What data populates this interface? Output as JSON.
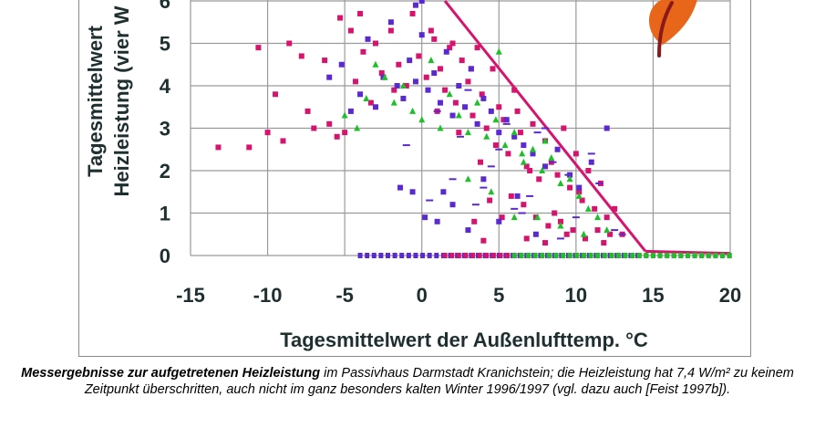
{
  "chart_data": {
    "type": "scatter",
    "xlabel": "Tagesmittelwert der Außenlufttemp. °C",
    "ylabel_line1": "Tagesmittelwert",
    "ylabel_line2": "Heizleistung (vier W",
    "xlim": [
      -15,
      20
    ],
    "ylim": [
      0,
      6
    ],
    "xticks": [
      "-15",
      "-10",
      "-5",
      "0",
      "5",
      "10",
      "15",
      "20"
    ],
    "yticks": [
      "0",
      "1",
      "2",
      "3",
      "4",
      "5",
      "6"
    ],
    "grid": true,
    "colors": {
      "magenta": "#d6146e",
      "purple": "#5a2ad0",
      "green": "#1fbf2a",
      "logo": "#e8661a"
    },
    "envelope_line": {
      "x": [
        1.5,
        14.5
      ],
      "y": [
        6.0,
        0.1
      ]
    },
    "series": [
      {
        "marker": "square",
        "color": "#d6146e",
        "x": [
          -13.2,
          -11.2,
          -10.6,
          -10.0,
          -9.5,
          -9.0,
          -8.6,
          -7.8,
          -7.4,
          -7.0,
          -6.3,
          -6.0,
          -5.5,
          -5.3,
          -5.0,
          -4.6,
          -4.3,
          -4.0,
          -3.8,
          -3.3,
          -3.0,
          -2.6,
          -2.0,
          -1.5,
          -1.0,
          -0.6,
          -0.2,
          0.3,
          0.8,
          1.2,
          1.5,
          2.0,
          2.2,
          2.6,
          3.0,
          3.3,
          3.6,
          3.9,
          4.2,
          4.6,
          5.0,
          5.3,
          5.6,
          6.0,
          6.4,
          6.8,
          7.2,
          7.6,
          8.0,
          8.4,
          8.8,
          9.2,
          9.6,
          10.0,
          10.4,
          10.8,
          11.2,
          11.6,
          12.0,
          12.5,
          13.0,
          1.0,
          2.4,
          3.8,
          4.4,
          5.8,
          6.6,
          7.4,
          8.2,
          9.4,
          10.6,
          11.8,
          -1.8,
          0.6,
          1.8,
          3.2,
          4.8,
          6.2,
          7.0,
          8.6,
          9.0,
          9.8,
          10.2,
          11.4,
          12.2,
          3.4,
          4.0,
          5.2,
          6.8,
          8.0
        ],
        "y": [
          2.55,
          2.55,
          4.9,
          2.9,
          3.8,
          2.7,
          5.0,
          4.7,
          3.4,
          3.0,
          4.6,
          3.1,
          2.8,
          5.6,
          2.9,
          5.3,
          4.1,
          5.7,
          4.8,
          3.6,
          5.0,
          4.3,
          5.3,
          4.5,
          4.0,
          5.7,
          4.7,
          4.2,
          5.1,
          4.4,
          3.9,
          5.0,
          3.6,
          4.6,
          4.1,
          3.3,
          4.9,
          3.8,
          3.0,
          4.4,
          3.5,
          3.2,
          2.4,
          3.9,
          2.9,
          2.1,
          3.1,
          1.8,
          2.7,
          2.2,
          1.9,
          3.0,
          1.6,
          2.4,
          1.3,
          2.0,
          1.1,
          1.7,
          0.9,
          1.1,
          0.5,
          3.4,
          2.9,
          2.2,
          1.3,
          1.4,
          1.2,
          0.9,
          0.7,
          0.5,
          0.4,
          0.3,
          3.9,
          5.3,
          4.9,
          4.4,
          2.6,
          3.4,
          2.0,
          1.0,
          0.8,
          0.6,
          1.5,
          0.6,
          0.5,
          0.8,
          0.35,
          0.9,
          0.4,
          0.3
        ]
      },
      {
        "marker": "square",
        "color": "#5a2ad0",
        "x": [
          -6.0,
          -5.2,
          -4.6,
          -4.0,
          -3.5,
          -3.0,
          -2.5,
          -2.0,
          -1.6,
          -1.2,
          -0.8,
          -0.4,
          0.0,
          0.4,
          0.8,
          1.2,
          1.6,
          2.0,
          2.4,
          2.8,
          3.2,
          3.6,
          4.0,
          4.5,
          5.0,
          5.5,
          6.0,
          6.6,
          7.2,
          8.0,
          8.8,
          9.6,
          10.2,
          11.0,
          12.0,
          -1.4,
          -0.6,
          0.2,
          1.0,
          2.0,
          3.0,
          4.0,
          5.0,
          6.2,
          7.4,
          0.0,
          -0.4,
          1.4
        ],
        "y": [
          4.2,
          4.5,
          3.4,
          3.8,
          5.1,
          3.5,
          4.2,
          5.5,
          4.0,
          3.7,
          4.6,
          4.1,
          5.2,
          3.9,
          4.3,
          3.6,
          4.8,
          3.3,
          4.0,
          3.5,
          4.4,
          3.1,
          3.7,
          3.4,
          2.9,
          3.2,
          2.8,
          2.6,
          2.4,
          2.1,
          2.5,
          1.9,
          1.6,
          2.2,
          3.0,
          1.6,
          1.5,
          0.9,
          0.8,
          1.2,
          0.6,
          1.8,
          0.8,
          1.4,
          0.5,
          6.0,
          5.9,
          1.5
        ]
      },
      {
        "marker": "triangle",
        "color": "#1fbf2a",
        "x": [
          -5.0,
          -4.2,
          -3.6,
          -3.0,
          -2.4,
          -1.8,
          -1.2,
          -0.6,
          0.0,
          0.6,
          1.2,
          1.8,
          2.4,
          3.0,
          3.6,
          4.2,
          4.8,
          5.4,
          6.0,
          6.6,
          7.2,
          7.8,
          8.4,
          9.0,
          9.6,
          10.2,
          10.8,
          11.4,
          12.0,
          3.0,
          4.5,
          6.0,
          7.5,
          9.0,
          10.5,
          5.0,
          6.5,
          8.0
        ],
        "y": [
          3.3,
          3.0,
          3.7,
          4.5,
          4.2,
          3.6,
          4.0,
          3.4,
          3.2,
          4.6,
          3.0,
          3.8,
          3.3,
          2.9,
          3.6,
          2.8,
          3.2,
          2.6,
          2.9,
          2.2,
          2.5,
          2.0,
          2.3,
          1.7,
          1.8,
          1.4,
          1.1,
          0.9,
          0.6,
          1.8,
          1.5,
          0.9,
          0.9,
          0.7,
          0.5,
          4.8,
          2.4,
          2.7
        ]
      },
      {
        "marker": "dash",
        "color": "#5a2ad0",
        "x": [
          -1.0,
          0.5,
          2.0,
          3.5,
          5.0,
          6.5,
          8.0,
          9.5,
          11.0,
          12.5,
          1.0,
          2.5,
          4.0,
          5.5,
          7.0,
          8.5,
          10.0,
          11.5,
          13.0,
          3.0,
          4.5,
          6.0,
          7.5,
          9.0
        ],
        "y": [
          2.6,
          1.3,
          1.8,
          1.2,
          2.5,
          1.0,
          3.0,
          1.9,
          2.4,
          0.6,
          3.4,
          2.8,
          1.6,
          3.1,
          1.4,
          2.2,
          0.9,
          1.7,
          0.5,
          3.9,
          2.1,
          1.1,
          2.9,
          0.4
        ]
      },
      {
        "marker": "zero-row",
        "color": "#5a2ad0",
        "xmin": -4.0,
        "xmax": 14.0,
        "y": 0
      },
      {
        "marker": "zero-row",
        "color": "#d6146e",
        "xmin": 1.5,
        "xmax": 20.0,
        "y": 0
      },
      {
        "marker": "zero-row",
        "color": "#1fbf2a",
        "xmin": 6.0,
        "xmax": 20.0,
        "y": 0
      }
    ]
  },
  "caption": {
    "bold": "Messergebnisse zur aufgetretenen Heizleistung",
    "rest": " im Passivhaus Darmstadt Kranichstein; die Heizleistung hat 7,4 W/m² zu keinem Zeitpunkt überschritten, auch nicht im ganz besonders kalten Winter 1996/1997 (vgl. dazu auch [Feist 1997b])."
  }
}
